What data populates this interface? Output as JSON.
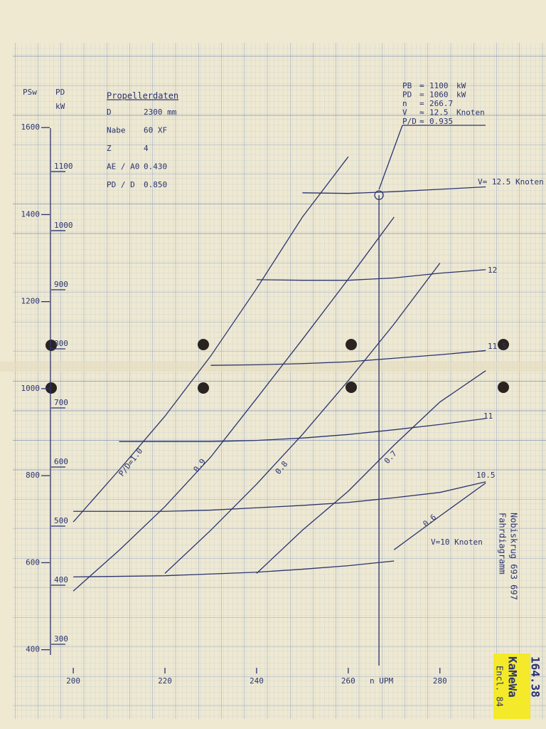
{
  "chart_data": {
    "type": "line",
    "xlabel": "n   UPM",
    "ylabel": [
      "PD",
      "kW"
    ],
    "y2label": "PSw",
    "x": [
      200,
      210,
      220,
      230,
      240,
      250,
      260,
      270,
      280,
      290
    ],
    "xlim": [
      186.8,
      292.6
    ],
    "xticks": [
      200,
      220,
      240,
      260,
      280
    ],
    "ylim": [
      173.5,
      1318
    ],
    "yticks": [
      300,
      400,
      500,
      600,
      700,
      800,
      900,
      1000,
      1100
    ],
    "y2lim": [
      240.7,
      1795
    ],
    "y2ticks": [
      400,
      600,
      800,
      1000,
      1200,
      1400,
      1600
    ],
    "color": "#2b3470",
    "series": [
      {
        "name": "P/D=1.0",
        "values": [
          507,
          595,
          686,
          788,
          902,
          1023,
          1125,
          null,
          null,
          null
        ]
      },
      {
        "name": "0.9",
        "values": [
          390,
          459,
          533,
          617,
          716,
          816,
          918,
          1023,
          null,
          null
        ]
      },
      {
        "name": "0.8",
        "values": [
          null,
          null,
          420,
          493,
          571,
          655,
          746,
          842,
          945,
          null
        ]
      },
      {
        "name": "0.7",
        "values": [
          null,
          null,
          null,
          null,
          420,
          493,
          559,
          637,
          710,
          763
        ]
      },
      {
        "name": "0.6",
        "values": [
          null,
          null,
          null,
          null,
          null,
          null,
          null,
          460,
          517,
          573
        ]
      },
      {
        "name": "V= 12.5 Knoten",
        "values": [
          null,
          null,
          null,
          null,
          null,
          1064,
          1063,
          1066,
          1070,
          1074
        ]
      },
      {
        "name": "12",
        "values": [
          null,
          null,
          null,
          null,
          917,
          916,
          916,
          920,
          928,
          934
        ]
      },
      {
        "name": "11.5",
        "values": [
          null,
          null,
          null,
          772,
          773,
          775,
          778,
          784,
          790,
          797
        ]
      },
      {
        "name": "11",
        "values": [
          null,
          643,
          643,
          643,
          645,
          649,
          655,
          663,
          672,
          682
        ]
      },
      {
        "name": "10.5",
        "values": [
          525,
          525,
          525,
          527,
          531,
          535,
          540,
          548,
          557,
          575
        ]
      },
      {
        "name": "V=10 Knoten",
        "values": [
          414,
          415,
          416,
          419,
          422,
          427,
          433,
          441,
          null,
          null
        ]
      }
    ]
  },
  "propeller_data": {
    "title": "Propellerdaten",
    "rows": [
      [
        "D",
        "2300  mm"
      ],
      [
        "Nabe",
        "60 XF"
      ],
      [
        "Z",
        "4"
      ],
      [
        "AE / A0",
        "0.430"
      ],
      [
        "PD / D",
        "0.850"
      ]
    ]
  },
  "operating_point": {
    "lines": [
      {
        "label": "PB",
        "sep": "=",
        "value": 1100,
        "unit": "kW"
      },
      {
        "label": "PD",
        "sep": "=",
        "value": 1060,
        "unit": "kW"
      },
      {
        "label": "n",
        "sep": "=",
        "value": 266.7
      },
      {
        "label": "V",
        "sep": "≈",
        "value": 12.5,
        "unit": "Knoten"
      },
      {
        "label": "P/D",
        "sep": "≈",
        "value": 0.935
      }
    ]
  },
  "stamps": {
    "vessel": "Nobiskrug  693 697",
    "title": "Fahrdiagramm",
    "brand": "KaMeWa",
    "encl": "Encl. 84",
    "number": "164.38"
  }
}
